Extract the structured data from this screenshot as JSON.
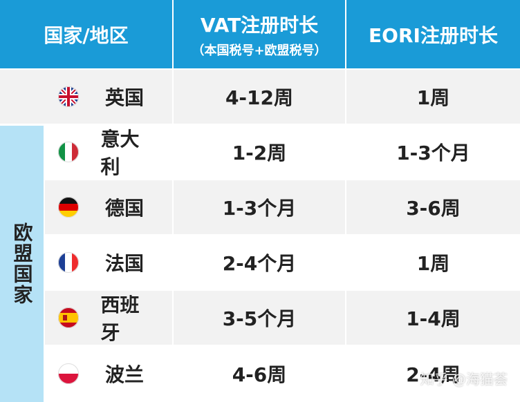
{
  "header": {
    "country": "国家/地区",
    "vat": "VAT注册时长",
    "vat_note": "（本国税号+欧盟税号）",
    "eori": "EORI注册时长"
  },
  "group_label": "欧盟国家",
  "rows": [
    [
      "英国",
      "4-12周",
      "1周"
    ],
    [
      "意大利",
      "1-2周",
      "1-3个月"
    ],
    [
      "德国",
      "1-3个月",
      "3-6周"
    ],
    [
      "法国",
      "2-4个月",
      "1周"
    ],
    [
      "西班牙",
      "3-5个月",
      "1-4周"
    ],
    [
      "波兰",
      "4-6周",
      "2-4周"
    ]
  ],
  "watermark": "知乎 @海猫荟"
}
